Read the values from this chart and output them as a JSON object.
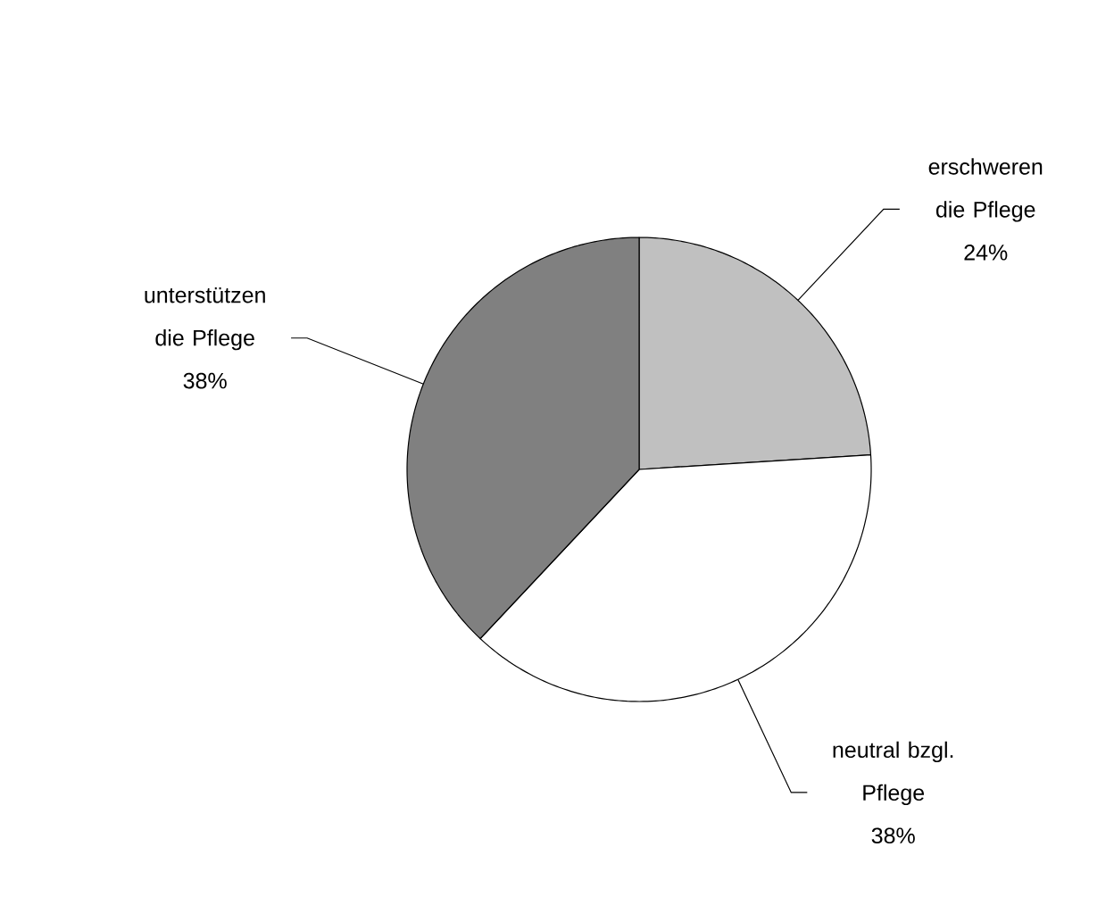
{
  "chart_data": {
    "type": "pie",
    "categories": [
      "erschweren die Pflege",
      "neutral bzgl. Pflege",
      "unterstützen die Pflege"
    ],
    "values": [
      24,
      38,
      38
    ],
    "colors": [
      "#c0c0c0",
      "#ffffff",
      "#808080"
    ],
    "value_labels": [
      "24%",
      "38%",
      "38%"
    ]
  }
}
